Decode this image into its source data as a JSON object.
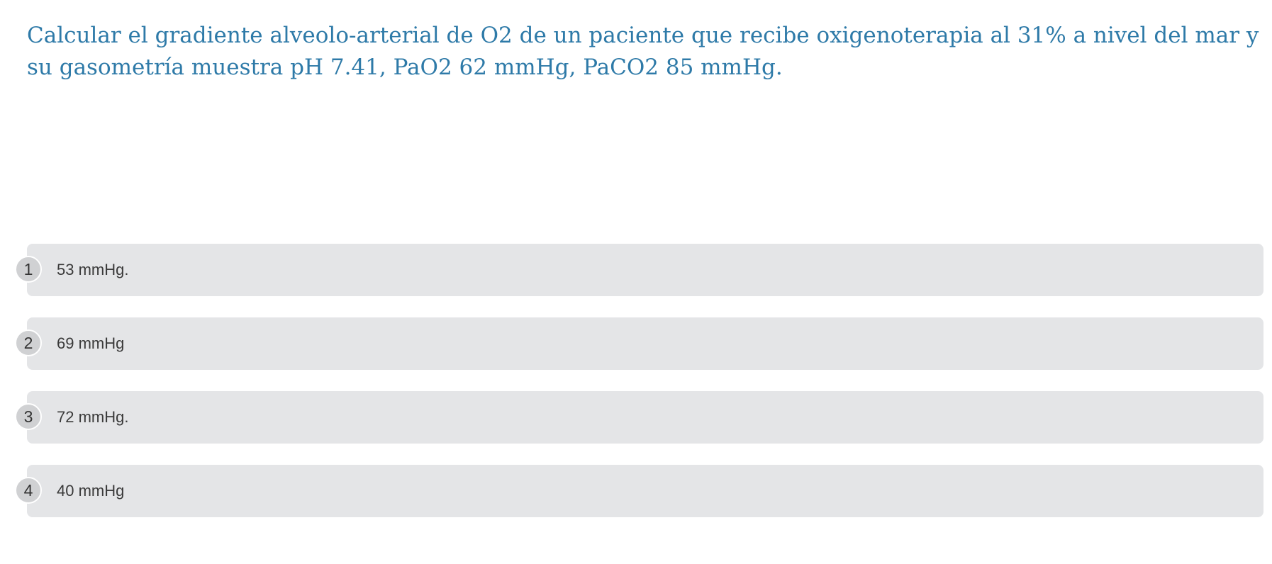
{
  "question": {
    "text": "Calcular el gradiente alveolo-arterial de O2 de un paciente que recibe oxigenoterapia al 31% a nivel del mar y su gasometría muestra pH 7.41, PaO2 62 mmHg, PaCO2 85 mmHg."
  },
  "options": [
    {
      "number": "1",
      "label": "53 mmHg."
    },
    {
      "number": "2",
      "label": "69 mmHg"
    },
    {
      "number": "3",
      "label": "72 mmHg."
    },
    {
      "number": "4",
      "label": "40 mmHg"
    }
  ],
  "colors": {
    "question_text": "#2e7aa8",
    "option_background": "#e4e5e7",
    "number_badge": "#d0d1d3"
  }
}
